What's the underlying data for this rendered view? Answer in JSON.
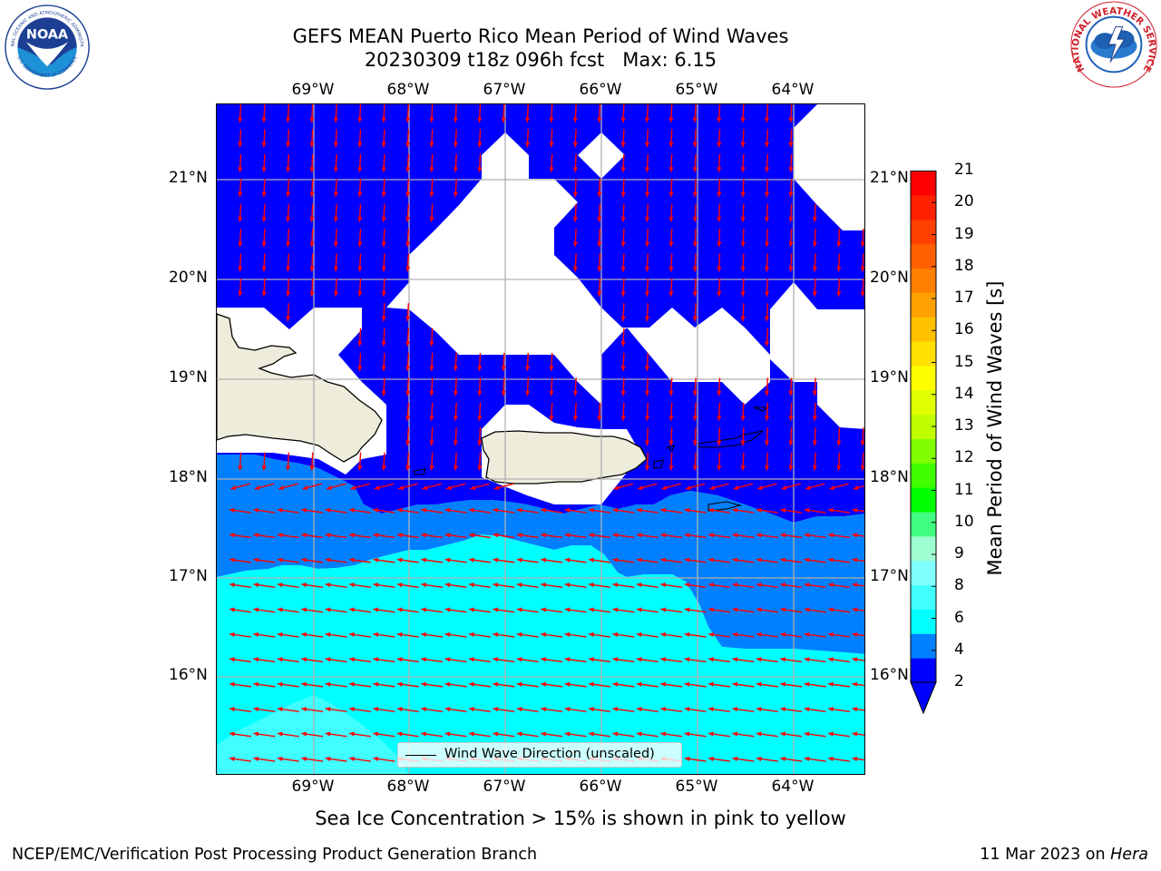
{
  "header": {
    "title_line1": "GEFS MEAN Puerto Rico Mean Period of Wind Waves",
    "title_line2": "20230309 t18z 096h fcst   Max: 6.15"
  },
  "map": {
    "lon_labels": [
      "69°W",
      "68°W",
      "67°W",
      "66°W",
      "65°W",
      "64°W"
    ],
    "lat_labels": [
      "21°N",
      "20°N",
      "19°N",
      "18°N",
      "17°N",
      "16°N"
    ],
    "legend_label": "Wind Wave Direction (unscaled)",
    "arrow_color": "#ff0000",
    "land_color": "#eeeddc"
  },
  "colorbar": {
    "label": "Mean Period of Wind Waves [s]",
    "ticks": [
      "2",
      "4",
      "6",
      "8",
      "9",
      "10",
      "11",
      "12",
      "13",
      "14",
      "15",
      "16",
      "17",
      "18",
      "19",
      "20",
      "21"
    ],
    "colors": [
      "#0000ff",
      "#0080ff",
      "#00ffff",
      "#40ffff",
      "#80ffff",
      "#a0ffd0",
      "#40ff80",
      "#00ff00",
      "#40ff00",
      "#80ff00",
      "#c0ff00",
      "#e0ff00",
      "#ffff00",
      "#ffe000",
      "#ffc000",
      "#ffa000",
      "#ff8000",
      "#ff6000",
      "#ff4000",
      "#ff2000",
      "#ff0000"
    ]
  },
  "note": "Sea Ice Concentration > 15% is shown in pink to yellow",
  "footer": {
    "left": "NCEP/EMC/Verification Post Processing Product Generation Branch",
    "right_prefix": "11 Mar 2023 on ",
    "right_host": "Hera"
  },
  "logos": {
    "noaa_text": "NOAA",
    "noaa_ring_top": "NATIONAL OCEANIC AND ATMOSPHERIC ADMINISTRATION",
    "noaa_ring_bottom": "U.S. DEPARTMENT OF COMMERCE",
    "nws_ring": "NATIONAL WEATHER SERVICE"
  }
}
